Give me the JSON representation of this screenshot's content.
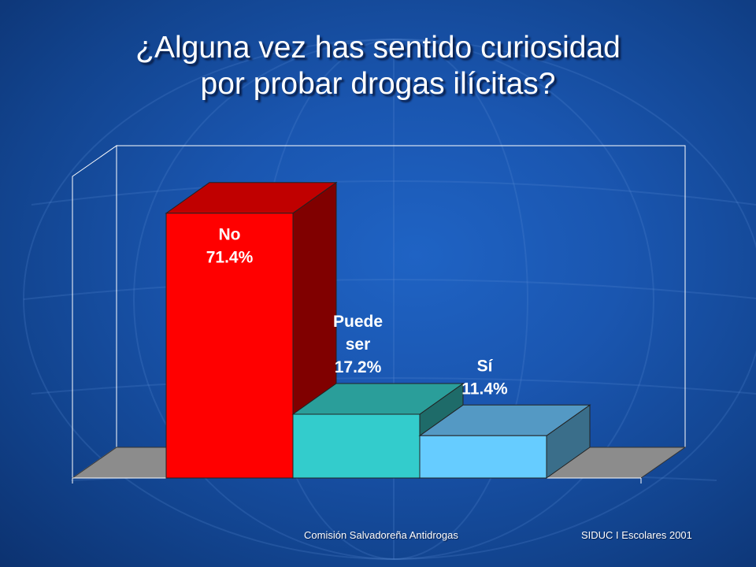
{
  "slide": {
    "title_line1": "¿Alguna vez has sentido curiosidad",
    "title_line2": "por probar drogas ilícitas?",
    "footer_left": "Comisión Salvadoreña Antidrogas",
    "footer_right": "SIDUC I Escolares 2001"
  },
  "chart_data": {
    "type": "bar",
    "title": "",
    "xlabel": "",
    "ylabel": "",
    "ylim": [
      0,
      80
    ],
    "grid": false,
    "legend": "none",
    "categories": [
      "No",
      "Puede ser",
      "Sí"
    ],
    "values": [
      71.4,
      17.2,
      11.4
    ],
    "labels": [
      [
        "No",
        "71.4%"
      ],
      [
        "Puede",
        "ser",
        "17.2%"
      ],
      [
        "Sí",
        "11.4%"
      ]
    ],
    "colors": [
      {
        "front": "#ff0000",
        "top": "#c00000",
        "side": "#800000"
      },
      {
        "front": "#33cccc",
        "top": "#2a9e9a",
        "side": "#1e6b69"
      },
      {
        "front": "#66ccff",
        "top": "#5499c4",
        "side": "#3a6e8a"
      }
    ],
    "floor_color": "#8c8c8c"
  }
}
